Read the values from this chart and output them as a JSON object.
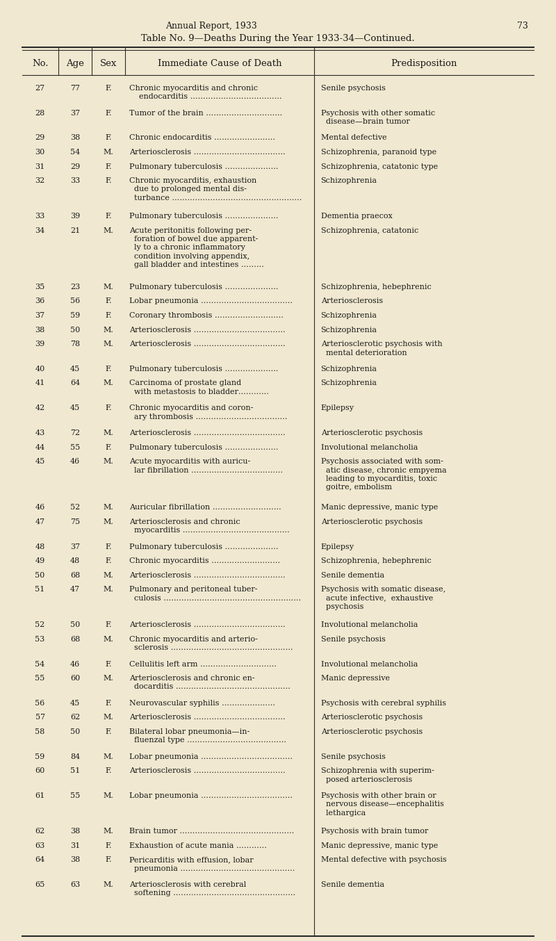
{
  "page_header": "Annual Report, 1933",
  "page_number": "73",
  "title": "Table No. 9—Deaths During the Year 1933-34—Continued.",
  "col_headers": [
    "No.",
    "Age",
    "Sex",
    "Immediate Cause of Death",
    "Predisposition"
  ],
  "bg_color": "#f0e8d0",
  "text_color": "#1a1a1a",
  "rows": [
    [
      "27",
      "77",
      "F.",
      "Chronic myocarditis and chronic\n    endocarditis ………………………………",
      "Senile psychosis"
    ],
    [
      "28",
      "37",
      "F.",
      "Tumor of the brain …………………………",
      "Psychosis with other somatic\n  disease—brain tumor"
    ],
    [
      "29",
      "38",
      "F.",
      "Chronic endocarditis ……………………",
      "Mental defective"
    ],
    [
      "30",
      "54",
      "M.",
      "Arteriosclerosis ………………………………",
      "Schizophrenia, paranoid type"
    ],
    [
      "31",
      "29",
      "F.",
      "Pulmonary tuberculosis …………………",
      "Schizophrenia, catatonic type"
    ],
    [
      "32",
      "33",
      "F.",
      "Chronic myocarditis, exhaustion\n  due to prolonged mental dis-\n  turbance ……………………………………………",
      "Schizophrenia"
    ],
    [
      "33",
      "39",
      "F.",
      "Pulmonary tuberculosis …………………",
      "Dementia praecox"
    ],
    [
      "34",
      "21",
      "M.",
      "Acute peritonitis following per-\n  foration of bowel due apparent-\n  ly to a chronic inflammatory\n  condition involving appendix,\n  gall bladder and intestines ………",
      "Schizophrenia, catatonic"
    ],
    [
      "35",
      "23",
      "M.",
      "Pulmonary tuberculosis …………………",
      "Schizophrenia, hebephrenic"
    ],
    [
      "36",
      "56",
      "F.",
      "Lobar pneumonia ………………………………",
      "Arteriosclerosis"
    ],
    [
      "37",
      "59",
      "F.",
      "Coronary thrombosis ………………………",
      "Schizophrenia"
    ],
    [
      "38",
      "50",
      "M.",
      "Arteriosclerosis ………………………………",
      "Schizophrenia"
    ],
    [
      "39",
      "78",
      "M.",
      "Arteriosclerosis ………………………………",
      "Arteriosclerotic psychosis with\n  mental deterioration"
    ],
    [
      "40",
      "45",
      "F.",
      "Pulmonary tuberculosis …………………",
      "Schizophrenia"
    ],
    [
      "41",
      "64",
      "M.",
      "Carcinoma of prostate gland\n  with metastosis to bladder…………",
      "Schizophrenia"
    ],
    [
      "42",
      "45",
      "F.",
      "Chronic myocarditis and coron-\n  ary thrombosis ………………………………",
      "Epilepsy"
    ],
    [
      "43",
      "72",
      "M.",
      "Arteriosclerosis ………………………………",
      "Arteriosclerotic psychosis"
    ],
    [
      "44",
      "55",
      "F.",
      "Pulmonary tuberculosis …………………",
      "Involutional melancholia"
    ],
    [
      "45",
      "46",
      "M.",
      "Acute myocarditis with auricu-\n  lar fibrillation ………………………………",
      "Psychosis associated with som-\n  atic disease, chronic empyema\n  leading to myocarditis, toxic\n  goitre, embolism"
    ],
    [
      "46",
      "52",
      "M.",
      "Auricular fibrillation ………………………",
      "Manic depressive, manic type"
    ],
    [
      "47",
      "75",
      "M.",
      "Arteriosclerosis and chronic\n  myocarditis ……………………………………",
      "Arteriosclerotic psychosis"
    ],
    [
      "48",
      "37",
      "F.",
      "Pulmonary tuberculosis …………………",
      "Epilepsy"
    ],
    [
      "49",
      "48",
      "F.",
      "Chronic myocarditis ………………………",
      "Schizophrenia, hebephrenic"
    ],
    [
      "50",
      "68",
      "M.",
      "Arteriosclerosis ………………………………",
      "Senile dementia"
    ],
    [
      "51",
      "47",
      "M.",
      "Pulmonary and peritoneal tuber-\n  culosis ………………………………………………",
      "Psychosis with somatic disease,\n  acute infective,  exhaustive\n  psychosis"
    ],
    [
      "52",
      "50",
      "F.",
      "Arteriosclerosis ………………………………",
      "Involutional melancholia"
    ],
    [
      "53",
      "68",
      "M.",
      "Chronic myocarditis and arterio-\n  sclerosis …………………………………………",
      "Senile psychosis"
    ],
    [
      "54",
      "46",
      "F.",
      "Cellulitis left arm …………………………",
      "Involutional melancholia"
    ],
    [
      "55",
      "60",
      "M.",
      "Arteriosclerosis and chronic en-\n  docarditis ………………………………………",
      "Manic depressive"
    ],
    [
      "56",
      "45",
      "F.",
      "Neurovascular syphilis …………………",
      "Psychosis with cerebral syphilis"
    ],
    [
      "57",
      "62",
      "M.",
      "Arteriosclerosis ………………………………",
      "Arteriosclerotic psychosis"
    ],
    [
      "58",
      "50",
      "F.",
      "Bilateral lobar pneumonia—in-\n  fluenzal type …………………………………",
      "Arteriosclerotic psychosis"
    ],
    [
      "59",
      "84",
      "M.",
      "Lobar pneumonia ………………………………",
      "Senile psychosis"
    ],
    [
      "60",
      "51",
      "F.",
      "Arteriosclerosis ………………………………",
      "Schizophrenia with superim-\n  posed arteriosclerosis"
    ],
    [
      "61",
      "55",
      "M.",
      "Lobar pneumonia ………………………………",
      "Psychosis with other brain or\n  nervous disease—encephalitis\n  lethargica"
    ],
    [
      "62",
      "38",
      "M.",
      "Brain tumor ………………………………………",
      "Psychosis with brain tumor"
    ],
    [
      "63",
      "31",
      "F.",
      "Exhaustion of acute mania …………",
      "Manic depressive, manic type"
    ],
    [
      "64",
      "38",
      "F.",
      "Pericarditis with effusion, lobar\n  pneumonia ………………………………………",
      "Mental defective with psychosis"
    ],
    [
      "65",
      "63",
      "M.",
      "Arteriosclerosis with cerebral\n  softening …………………………………………",
      "Senile dementia"
    ]
  ]
}
